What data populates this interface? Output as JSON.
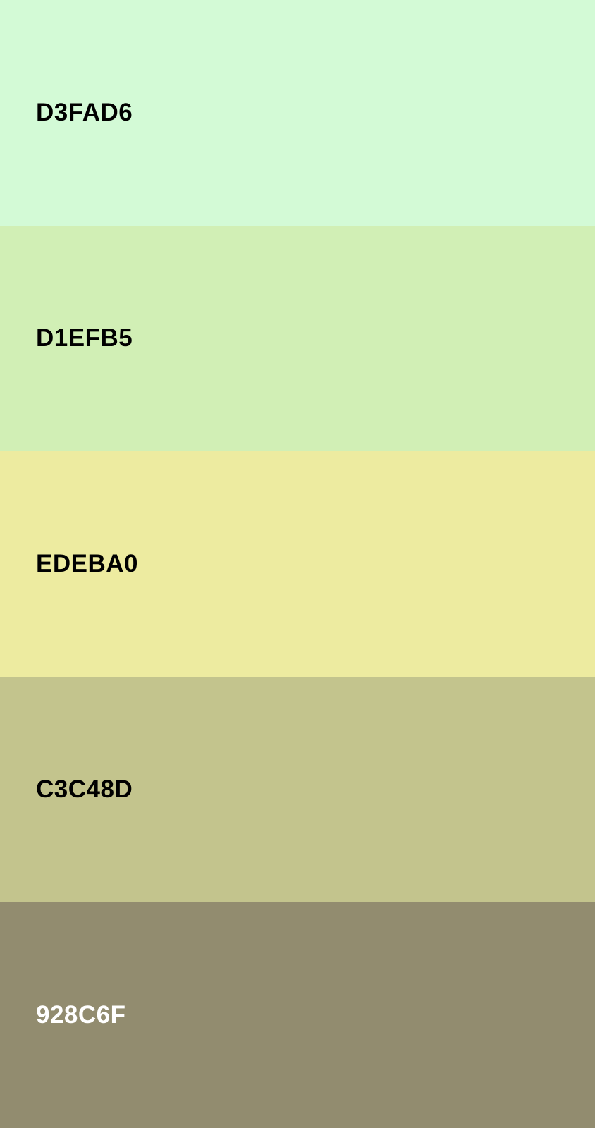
{
  "swatches": [
    {
      "label": "D3FAD6",
      "color": "#D3FAD6",
      "text_color": "#000000"
    },
    {
      "label": "D1EFB5",
      "color": "#D1EFB5",
      "text_color": "#000000"
    },
    {
      "label": "EDEBA0",
      "color": "#EDEBA0",
      "text_color": "#000000"
    },
    {
      "label": "C3C48D",
      "color": "#C3C48D",
      "text_color": "#000000"
    },
    {
      "label": "928C6F",
      "color": "#928C6F",
      "text_color": "#FFFFFF"
    }
  ]
}
